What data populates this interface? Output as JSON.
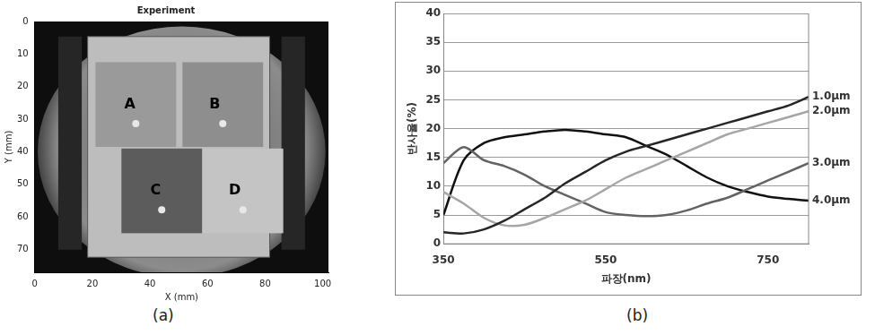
{
  "chart_data": [
    {
      "type": "image",
      "title": "Experiment",
      "x_label": "X (mm)",
      "y_label": "Y (mm)",
      "xlim": [
        0,
        102
      ],
      "ylim": [
        0,
        77
      ],
      "xticks": [
        0,
        20,
        40,
        60,
        80,
        100
      ],
      "yticks": [
        0,
        10,
        20,
        30,
        40,
        50,
        60,
        70
      ],
      "annotations": [
        {
          "text": "A",
          "x": 33,
          "y": 25.5
        },
        {
          "text": "B",
          "x": 62.5,
          "y": 25.5
        },
        {
          "text": "C",
          "x": 42,
          "y": 52
        },
        {
          "text": "D",
          "x": 69.5,
          "y": 52
        }
      ],
      "caption": "(a)"
    },
    {
      "type": "line",
      "x_label": "파장(nm)",
      "y_label": "반사율(%)",
      "x": [
        350,
        375,
        400,
        425,
        450,
        475,
        500,
        525,
        550,
        575,
        600,
        625,
        650,
        675,
        700,
        725,
        750,
        775,
        800
      ],
      "series": [
        {
          "name": "1.0μm",
          "color": "#262626",
          "values": [
            2,
            1.8,
            2.5,
            4,
            6,
            8,
            10.5,
            12.5,
            14.5,
            16,
            17,
            18,
            19,
            20,
            21,
            22,
            23,
            24,
            25.5
          ]
        },
        {
          "name": "2.0μm",
          "color": "#a6a6a6",
          "values": [
            9,
            7,
            4.5,
            3.2,
            3.3,
            4.5,
            6,
            7.5,
            9.5,
            11.5,
            13,
            14.5,
            16,
            17.5,
            19,
            20,
            21,
            22,
            23
          ]
        },
        {
          "name": "3.0μm",
          "color": "#636363",
          "values": [
            14,
            16.8,
            14.5,
            13.5,
            12,
            10,
            8.5,
            7,
            5.5,
            5,
            4.8,
            5,
            5.8,
            7,
            8,
            9.5,
            11,
            12.5,
            14
          ]
        },
        {
          "name": "4.0μm",
          "color": "#111111",
          "values": [
            5,
            14.5,
            17.5,
            18.5,
            19,
            19.5,
            19.8,
            19.5,
            19,
            18.5,
            17,
            15.5,
            13.5,
            11.5,
            10,
            9,
            8.2,
            7.8,
            7.5
          ]
        }
      ],
      "xlim": [
        350,
        800
      ],
      "ylim": [
        0,
        40
      ],
      "xticks": [
        350,
        550,
        750
      ],
      "yticks": [
        0,
        5,
        10,
        15,
        20,
        25,
        30,
        35,
        40
      ],
      "grid": true,
      "caption": "(b)"
    }
  ]
}
